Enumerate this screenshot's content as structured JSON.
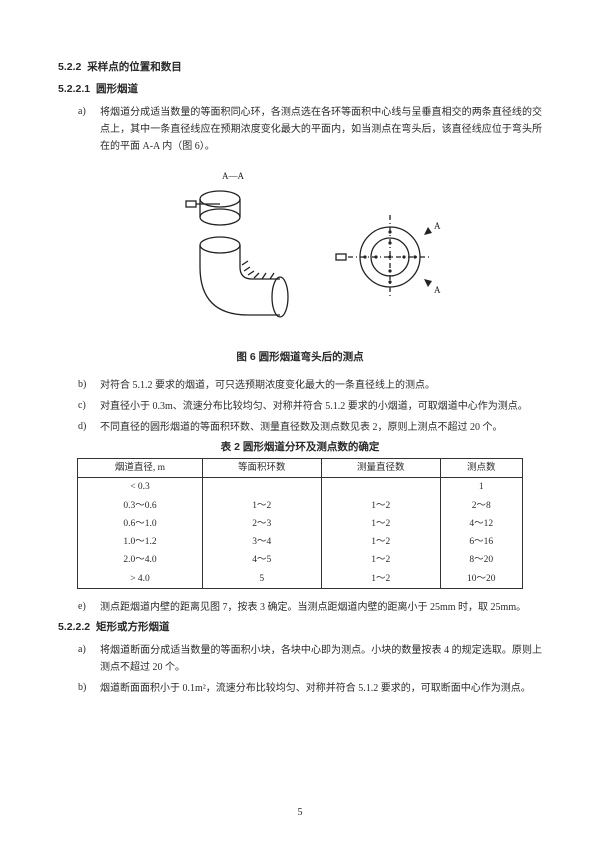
{
  "sec522": {
    "num": "5.2.2",
    "title": "采样点的位置和数目"
  },
  "sec5221": {
    "num": "5.2.2.1",
    "title": "圆形烟道"
  },
  "itemA521": "将烟道分成适当数量的等面积同心环，各测点选在各环等面积中心线与呈垂直相交的两条直径线的交点上，其中一条直径线应在预期浓度变化最大的平面内，如当测点在弯头后，该直径线应位于弯头所在的平面 A-A 内（图 6）。",
  "fig6label": "A—A",
  "fig6caption": "图 6  圆形烟道弯头后的测点",
  "itemB521": "对符合 5.1.2 要求的烟道，可只选预期浓度变化最大的一条直径线上的测点。",
  "itemC521": "对直径小于 0.3m、流速分布比较均匀、对称并符合 5.1.2 要求的小烟道，可取烟道中心作为测点。",
  "itemD521": "不同直径的圆形烟道的等面积环数、测量直径数及测点数见表 2，原则上测点不超过 20 个。",
  "table2caption": "表 2    圆形烟道分环及测点数的确定",
  "table2": {
    "headers": [
      "烟道直径, m",
      "等面积环数",
      "测量直径数",
      "测点数"
    ],
    "rows": [
      [
        "< 0.3",
        "",
        "",
        "1"
      ],
      [
        "0.3～0.6",
        "1～2",
        "1～2",
        "2～8"
      ],
      [
        "0.6～1.0",
        "2～3",
        "1～2",
        "4～12"
      ],
      [
        "1.0～1.2",
        "3～4",
        "1～2",
        "6～16"
      ],
      [
        "2.0～4.0",
        "4～5",
        "1～2",
        "8～20"
      ],
      [
        "> 4.0",
        "5",
        "1～2",
        "10～20"
      ]
    ]
  },
  "itemE521": "测点距烟道内壁的距离见图 7，按表 3 确定。当测点距烟道内壁的距离小于 25mm 时，取 25mm。",
  "sec5222": {
    "num": "5.2.2.2",
    "title": "矩形或方形烟道"
  },
  "itemA522": "将烟道断面分成适当数量的等面积小块，各块中心即为测点。小块的数量按表 4 的规定选取。原则上测点不超过 20 个。",
  "itemB522": "烟道断面面积小于 0.1m²，流速分布比较均匀、对称并符合 5.1.2 要求的，可取断面中心作为测点。",
  "pageNumber": "5",
  "colors": {
    "text": "#2a2a2a",
    "line": "#222222",
    "bg": "#ffffff"
  }
}
